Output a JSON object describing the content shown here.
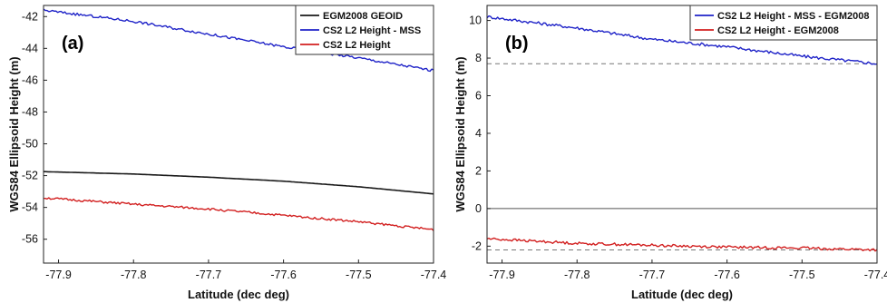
{
  "chart_data": [
    {
      "type": "line",
      "panel_label": "(a)",
      "xlabel": "Latitude (dec deg)",
      "ylabel": "WGS84 Ellipsoid Height (m)",
      "xlim": [
        -77.92,
        -77.4
      ],
      "ylim": [
        -57.5,
        -41.3
      ],
      "xticks": [
        -77.9,
        -77.8,
        -77.7,
        -77.6,
        -77.5,
        -77.4
      ],
      "yticks": [
        -56,
        -54,
        -52,
        -50,
        -48,
        -46,
        -44,
        -42
      ],
      "legend_position": "top-right",
      "series": [
        {
          "name": "EGM2008 GEOID",
          "color": "#1a1a1a",
          "noise": 0,
          "x": [
            -77.92,
            -77.8,
            -77.7,
            -77.6,
            -77.5,
            -77.4
          ],
          "values": [
            -51.75,
            -51.9,
            -52.1,
            -52.35,
            -52.7,
            -53.15
          ]
        },
        {
          "name": "CS2 L2 Height - MSS",
          "color": "#1f23c8",
          "noise": 0.08,
          "x": [
            -77.92,
            -77.8,
            -77.7,
            -77.6,
            -77.5,
            -77.4
          ],
          "values": [
            -41.6,
            -42.3,
            -43.1,
            -43.9,
            -44.6,
            -45.4
          ]
        },
        {
          "name": "CS2 L2 Height",
          "color": "#d21f1f",
          "noise": 0.07,
          "x": [
            -77.92,
            -77.8,
            -77.7,
            -77.6,
            -77.5,
            -77.4
          ],
          "values": [
            -53.4,
            -53.8,
            -54.1,
            -54.5,
            -54.9,
            -55.4
          ]
        }
      ]
    },
    {
      "type": "line",
      "panel_label": "(b)",
      "xlabel": "Latitude (dec deg)",
      "ylabel": "WGS84 Ellipsoid Height (m)",
      "xlim": [
        -77.92,
        -77.4
      ],
      "ylim": [
        -2.9,
        10.8
      ],
      "xticks": [
        -77.9,
        -77.8,
        -77.7,
        -77.6,
        -77.5,
        -77.4
      ],
      "yticks": [
        -2,
        0,
        2,
        4,
        6,
        8,
        10
      ],
      "legend_position": "top-right",
      "reference_lines": [
        {
          "y": 0,
          "style": "solid",
          "color": "#555555"
        },
        {
          "y": 7.7,
          "style": "dashed",
          "color": "#777777"
        },
        {
          "y": -2.2,
          "style": "dashed",
          "color": "#777777"
        }
      ],
      "series": [
        {
          "name": "CS2 L2 Height - MSS - EGM2008",
          "color": "#1f23c8",
          "noise": 0.08,
          "x": [
            -77.92,
            -77.8,
            -77.7,
            -77.6,
            -77.5,
            -77.4
          ],
          "values": [
            10.2,
            9.6,
            9.0,
            8.6,
            8.1,
            7.7
          ]
        },
        {
          "name": "CS2 L2 Height - EGM2008",
          "color": "#d21f1f",
          "noise": 0.07,
          "x": [
            -77.92,
            -77.8,
            -77.7,
            -77.6,
            -77.5,
            -77.4
          ],
          "values": [
            -1.6,
            -1.85,
            -1.95,
            -2.05,
            -2.1,
            -2.2
          ]
        }
      ]
    }
  ]
}
